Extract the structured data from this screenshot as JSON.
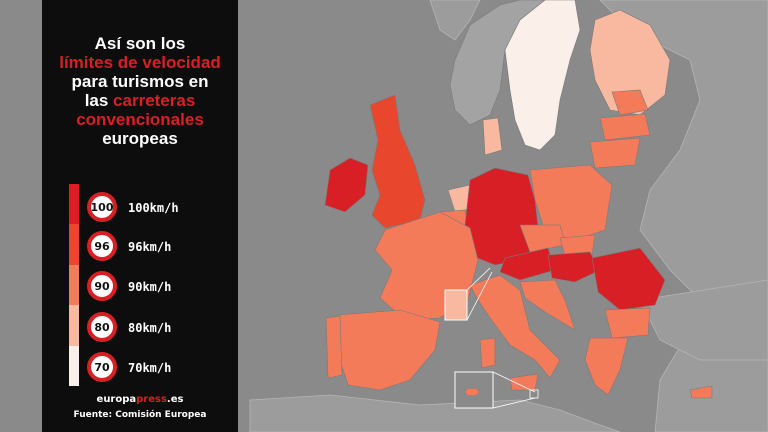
{
  "title": {
    "line1": "Así son los",
    "line2": "límites de velocidad",
    "line3": "para turismos en",
    "line4a": "las ",
    "line4b": "carreteras",
    "line5": "convencionales",
    "line6": "europeas"
  },
  "legend": [
    {
      "sign": "100",
      "label": "100km/h",
      "color": "#d81f26"
    },
    {
      "sign": "96",
      "label": "96km/h",
      "color": "#e8472e"
    },
    {
      "sign": "90",
      "label": "90km/h",
      "color": "#f37b5a"
    },
    {
      "sign": "80",
      "label": "80km/h",
      "color": "#f9b8a0"
    },
    {
      "sign": "70",
      "label": "70km/h",
      "color": "#fbefea"
    }
  ],
  "brand": {
    "part1": "europa",
    "part2": "press",
    "part3": ".es"
  },
  "source": "Fuente: Comisión Europea",
  "colors": {
    "panel": "#0d0d0d",
    "title_accent": "#d81f26",
    "non_eu_land": "#9a9a9a",
    "sea": "#8d8d8d"
  }
}
